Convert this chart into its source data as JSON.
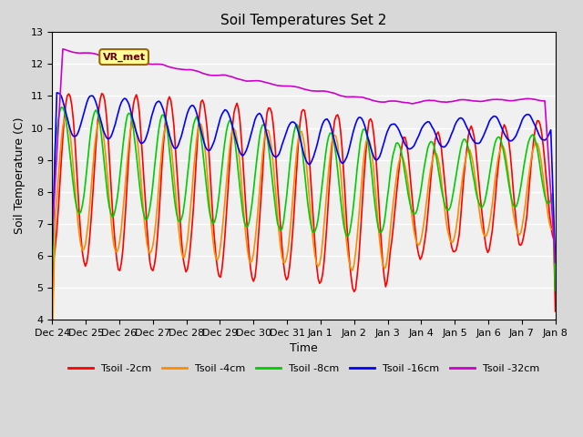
{
  "title": "Soil Temperatures Set 2",
  "xlabel": "Time",
  "ylabel": "Soil Temperature (C)",
  "ylim": [
    4.0,
    13.0
  ],
  "yticks": [
    4.0,
    5.0,
    6.0,
    7.0,
    8.0,
    9.0,
    10.0,
    11.0,
    12.0,
    13.0
  ],
  "xtick_labels": [
    "Dec 24",
    "Dec 25",
    "Dec 26",
    "Dec 27",
    "Dec 28",
    "Dec 29",
    "Dec 30",
    "Dec 31",
    "Jan 1",
    "Jan 2",
    "Jan 3",
    "Jan 4",
    "Jan 5",
    "Jan 6",
    "Jan 7",
    "Jan 8"
  ],
  "colors": {
    "Tsoil -2cm": "#ff0000",
    "Tsoil -4cm": "#ff8c00",
    "Tsoil -8cm": "#00cc00",
    "Tsoil -16cm": "#0000ff",
    "Tsoil -32cm": "#cc00cc"
  },
  "legend_label": "VR_met",
  "background_color": "#e8e8e8",
  "plot_bg_color": "#f0f0f0",
  "n_points": 336,
  "annotation_box_color": "#ffff99",
  "annotation_box_edge": "#996600"
}
